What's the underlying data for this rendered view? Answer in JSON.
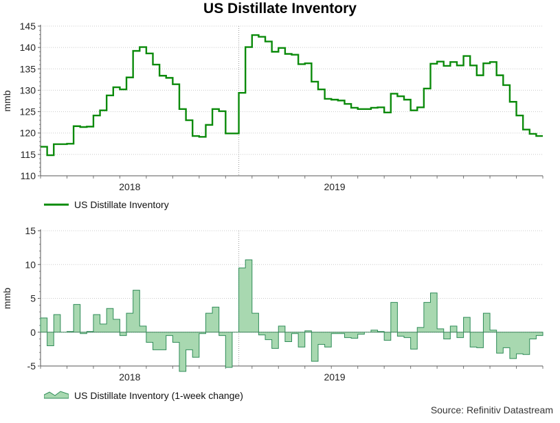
{
  "title": "US Distillate Inventory",
  "source": "Source: Refinitiv Datastream",
  "colors": {
    "line": "#0a8a0a",
    "fill": "#a8d8b0",
    "fill_stroke": "#2e8b57",
    "grid": "#c8c8c8"
  },
  "chart_data": [
    {
      "type": "line",
      "title": "US Distillate Inventory",
      "ylabel": "mmb",
      "ylim": [
        110,
        145
      ],
      "yticks": [
        "110",
        "115",
        "120",
        "125",
        "130",
        "135",
        "140",
        "145"
      ],
      "x_labels": [
        "2018",
        "2019"
      ],
      "legend": "US Distillate Inventory",
      "series": [
        {
          "name": "US Distillate Inventory",
          "values": [
            116.8,
            114.8,
            117.4,
            117.4,
            117.5,
            121.6,
            121.4,
            121.5,
            124.1,
            125.3,
            128.8,
            130.7,
            130.2,
            133.0,
            139.2,
            140.1,
            138.6,
            136.0,
            133.4,
            132.9,
            131.4,
            125.6,
            123.0,
            119.3,
            119.1,
            121.9,
            125.6,
            125.1,
            119.9,
            119.9,
            129.4,
            140.1,
            142.9,
            142.5,
            141.4,
            139.0,
            139.9,
            138.5,
            138.3,
            136.1,
            136.3,
            132.0,
            130.2,
            128.0,
            127.8,
            127.6,
            126.8,
            125.9,
            125.6,
            125.6,
            125.9,
            126.0,
            124.8,
            129.2,
            128.6,
            127.8,
            125.3,
            126.0,
            130.4,
            136.2,
            136.7,
            135.7,
            136.6,
            135.8,
            138.0,
            135.8,
            133.5,
            136.3,
            136.6,
            133.5,
            131.2,
            127.3,
            124.1,
            120.8,
            119.8,
            119.3
          ]
        }
      ]
    },
    {
      "type": "area",
      "title": "US Distillate Inventory (1-week change)",
      "ylabel": "mmb",
      "ylim": [
        -5,
        15
      ],
      "yticks": [
        "-5",
        "0",
        "5",
        "10",
        "15"
      ],
      "x_labels": [
        "2018",
        "2019"
      ],
      "legend": "US Distillate Inventory (1-week change)",
      "series": [
        {
          "name": "US Distillate Inventory (1-week change)",
          "values": [
            2.1,
            -2.0,
            2.6,
            0.0,
            0.1,
            4.1,
            -0.2,
            0.1,
            2.6,
            1.2,
            3.5,
            1.9,
            -0.5,
            2.8,
            6.2,
            0.9,
            -1.5,
            -2.6,
            -2.6,
            -0.5,
            -1.5,
            -5.8,
            -2.6,
            -3.7,
            -0.2,
            2.8,
            3.7,
            -0.5,
            -5.2,
            0.0,
            9.5,
            10.7,
            2.8,
            -0.4,
            -1.1,
            -2.4,
            0.9,
            -1.4,
            -0.2,
            -2.2,
            0.2,
            -4.3,
            -1.8,
            -2.2,
            -0.2,
            -0.2,
            -0.8,
            -0.9,
            -0.3,
            0.0,
            0.3,
            0.1,
            -1.2,
            4.4,
            -0.6,
            -0.8,
            -2.5,
            0.7,
            4.4,
            5.8,
            0.5,
            -1.0,
            0.9,
            -0.8,
            2.2,
            -2.2,
            -2.3,
            2.8,
            0.3,
            -3.1,
            -2.3,
            -3.9,
            -3.2,
            -3.3,
            -1.0,
            -0.5
          ]
        }
      ]
    }
  ]
}
